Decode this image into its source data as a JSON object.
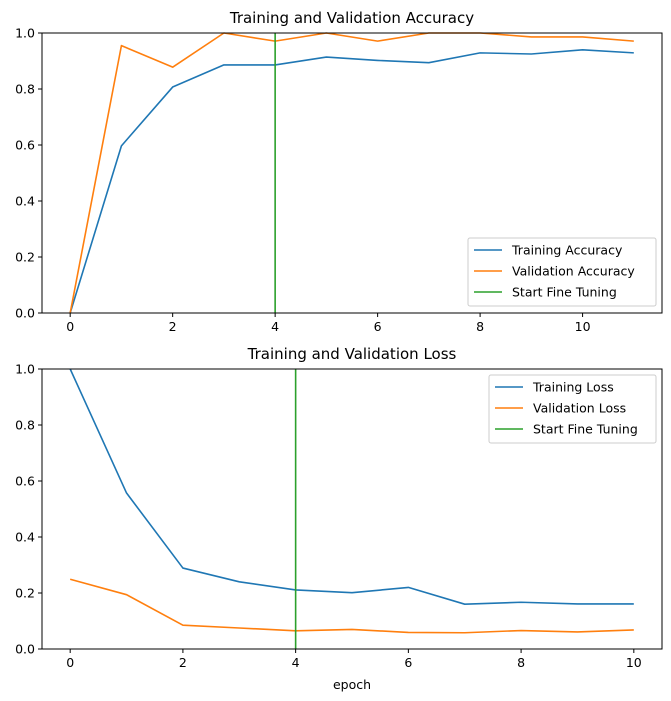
{
  "chart_data": [
    {
      "type": "line",
      "title": "Training and Validation Accuracy",
      "xlabel": "",
      "ylabel": "",
      "xlim": [
        -0.55,
        11.55
      ],
      "ylim": [
        0,
        1.0
      ],
      "xticks": [
        0,
        2,
        4,
        6,
        8,
        10
      ],
      "yticks": [
        0.0,
        0.2,
        0.4,
        0.6,
        0.8,
        1.0
      ],
      "xtick_labels": [
        "0",
        "2",
        "4",
        "6",
        "8",
        "10"
      ],
      "ytick_labels": [
        "0.0",
        "0.2",
        "0.4",
        "0.6",
        "0.8",
        "1.0"
      ],
      "x": [
        0,
        1,
        2,
        3,
        4,
        5,
        6,
        7,
        8,
        9,
        10,
        11
      ],
      "series": [
        {
          "name": "Training Accuracy",
          "color": "#1f77b4",
          "values": [
            0.0,
            0.597,
            0.807,
            0.886,
            0.886,
            0.914,
            0.902,
            0.894,
            0.929,
            0.925,
            0.94,
            0.929
          ]
        },
        {
          "name": "Validation Accuracy",
          "color": "#ff7f0e",
          "values": [
            0.0,
            0.955,
            0.878,
            1.0,
            0.971,
            1.0,
            0.971,
            1.0,
            1.0,
            0.986,
            0.986,
            0.971
          ]
        }
      ],
      "vline": {
        "name": "Start Fine Tuning",
        "x": 4,
        "color": "#2ca02c"
      },
      "legend": "lower right",
      "grid": false
    },
    {
      "type": "line",
      "title": "Training and Validation Loss",
      "xlabel": "epoch",
      "ylabel": "",
      "xlim": [
        -0.5,
        10.5
      ],
      "ylim": [
        0,
        1.0
      ],
      "xticks": [
        0,
        2,
        4,
        6,
        8,
        10
      ],
      "yticks": [
        0.0,
        0.2,
        0.4,
        0.6,
        0.8,
        1.0
      ],
      "xtick_labels": [
        "0",
        "2",
        "4",
        "6",
        "8",
        "10"
      ],
      "ytick_labels": [
        "0.0",
        "0.2",
        "0.4",
        "0.6",
        "0.8",
        "1.0"
      ],
      "x": [
        0,
        1,
        2,
        3,
        4,
        5,
        6,
        7,
        8,
        9,
        10
      ],
      "series": [
        {
          "name": "Training Loss",
          "color": "#1f77b4",
          "values": [
            1.0,
            0.557,
            0.289,
            0.24,
            0.211,
            0.201,
            0.22,
            0.16,
            0.167,
            0.161,
            0.161
          ]
        },
        {
          "name": "Validation Loss",
          "color": "#ff7f0e",
          "values": [
            0.249,
            0.194,
            0.085,
            0.075,
            0.065,
            0.07,
            0.059,
            0.058,
            0.066,
            0.061,
            0.068
          ]
        }
      ],
      "vline": {
        "name": "Start Fine Tuning",
        "x": 4,
        "color": "#2ca02c"
      },
      "legend": "upper right",
      "grid": false
    }
  ]
}
